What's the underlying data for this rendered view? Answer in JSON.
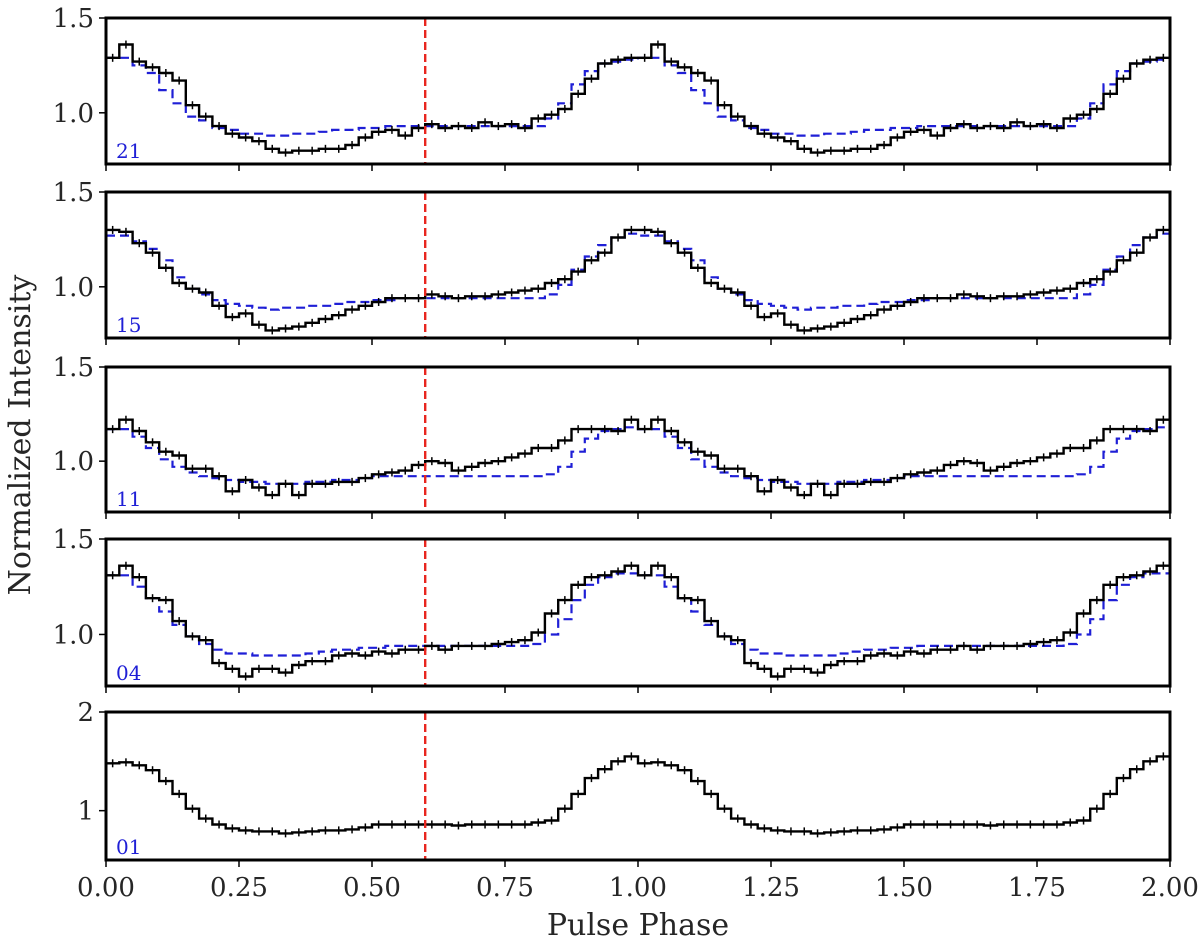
{
  "chart_data": {
    "type": "line",
    "xlabel": "Pulse Phase",
    "ylabel": "Normalized Intensity",
    "xlim": [
      0,
      2
    ],
    "x_ticks": [
      "0.00",
      "0.25",
      "0.50",
      "0.75",
      "1.00",
      "1.25",
      "1.50",
      "1.75",
      "2.00"
    ],
    "x_tick_values": [
      0,
      0.25,
      0.5,
      0.75,
      1.0,
      1.25,
      1.5,
      1.75,
      2.0
    ],
    "vline_x": 0.6,
    "colors": {
      "data": "#000000",
      "model": "#1f1fd6",
      "vline": "#e8261f",
      "frame": "#000000"
    },
    "panels": [
      {
        "label": "21",
        "ylim": [
          0.73,
          1.5
        ],
        "yticks": [
          1.0,
          1.5
        ],
        "ytick_labels": [
          "1.0",
          "1.5"
        ],
        "x": [
          0.0125,
          0.0375,
          0.0625,
          0.0875,
          0.1125,
          0.1375,
          0.1625,
          0.1875,
          0.2125,
          0.2375,
          0.2625,
          0.2875,
          0.3125,
          0.3375,
          0.3625,
          0.3875,
          0.4125,
          0.4375,
          0.4625,
          0.4875,
          0.5125,
          0.5375,
          0.5625,
          0.5875,
          0.6125,
          0.6375,
          0.6625,
          0.6875,
          0.7125,
          0.7375,
          0.7625,
          0.7875,
          0.8125,
          0.8375,
          0.8625,
          0.8875,
          0.9125,
          0.9375,
          0.9625,
          0.9875
        ],
        "data": [
          1.29,
          1.36,
          1.27,
          1.24,
          1.21,
          1.17,
          1.04,
          0.98,
          0.93,
          0.89,
          0.87,
          0.85,
          0.81,
          0.79,
          0.8,
          0.8,
          0.81,
          0.81,
          0.83,
          0.87,
          0.9,
          0.91,
          0.88,
          0.92,
          0.94,
          0.92,
          0.93,
          0.92,
          0.95,
          0.93,
          0.94,
          0.92,
          0.97,
          0.99,
          1.02,
          1.1,
          1.18,
          1.26,
          1.28,
          1.29
        ],
        "model": [
          1.29,
          1.29,
          1.25,
          1.21,
          1.12,
          1.05,
          0.98,
          0.96,
          0.92,
          0.91,
          0.89,
          0.89,
          0.88,
          0.88,
          0.89,
          0.89,
          0.9,
          0.91,
          0.91,
          0.92,
          0.92,
          0.93,
          0.93,
          0.93,
          0.93,
          0.93,
          0.93,
          0.93,
          0.93,
          0.93,
          0.93,
          0.93,
          0.93,
          0.97,
          1.05,
          1.15,
          1.22,
          1.26,
          1.27,
          1.28
        ]
      },
      {
        "label": "15",
        "ylim": [
          0.73,
          1.5
        ],
        "yticks": [
          1.0,
          1.5
        ],
        "ytick_labels": [
          "1.0",
          "1.5"
        ],
        "x": [
          0.0125,
          0.0375,
          0.0625,
          0.0875,
          0.1125,
          0.1375,
          0.1625,
          0.1875,
          0.2125,
          0.2375,
          0.2625,
          0.2875,
          0.3125,
          0.3375,
          0.3625,
          0.3875,
          0.4125,
          0.4375,
          0.4625,
          0.4875,
          0.5125,
          0.5375,
          0.5625,
          0.5875,
          0.6125,
          0.6375,
          0.6625,
          0.6875,
          0.7125,
          0.7375,
          0.7625,
          0.7875,
          0.8125,
          0.8375,
          0.8625,
          0.8875,
          0.9125,
          0.9375,
          0.9625,
          0.9875
        ],
        "data": [
          1.3,
          1.29,
          1.23,
          1.18,
          1.1,
          1.02,
          0.99,
          0.97,
          0.9,
          0.84,
          0.86,
          0.8,
          0.77,
          0.78,
          0.79,
          0.81,
          0.83,
          0.85,
          0.88,
          0.9,
          0.92,
          0.94,
          0.94,
          0.94,
          0.96,
          0.95,
          0.94,
          0.95,
          0.95,
          0.96,
          0.97,
          0.98,
          0.99,
          1.02,
          1.04,
          1.08,
          1.14,
          1.18,
          1.26,
          1.3
        ],
        "model": [
          1.27,
          1.27,
          1.24,
          1.2,
          1.14,
          1.05,
          0.99,
          0.96,
          0.93,
          0.91,
          0.9,
          0.89,
          0.88,
          0.89,
          0.89,
          0.9,
          0.9,
          0.91,
          0.92,
          0.92,
          0.93,
          0.93,
          0.94,
          0.94,
          0.94,
          0.94,
          0.94,
          0.94,
          0.94,
          0.94,
          0.94,
          0.94,
          0.94,
          0.96,
          1.01,
          1.09,
          1.16,
          1.22,
          1.26,
          1.28
        ]
      },
      {
        "label": "11",
        "ylim": [
          0.73,
          1.5
        ],
        "yticks": [
          1.0,
          1.5
        ],
        "ytick_labels": [
          "1.0",
          "1.5"
        ],
        "x": [
          0.0125,
          0.0375,
          0.0625,
          0.0875,
          0.1125,
          0.1375,
          0.1625,
          0.1875,
          0.2125,
          0.2375,
          0.2625,
          0.2875,
          0.3125,
          0.3375,
          0.3625,
          0.3875,
          0.4125,
          0.4375,
          0.4625,
          0.4875,
          0.5125,
          0.5375,
          0.5625,
          0.5875,
          0.6125,
          0.6375,
          0.6625,
          0.6875,
          0.7125,
          0.7375,
          0.7625,
          0.7875,
          0.8125,
          0.8375,
          0.8625,
          0.8875,
          0.9125,
          0.9375,
          0.9625,
          0.9875
        ],
        "data": [
          1.17,
          1.22,
          1.16,
          1.1,
          1.05,
          1.03,
          0.96,
          0.96,
          0.92,
          0.84,
          0.9,
          0.86,
          0.82,
          0.88,
          0.82,
          0.88,
          0.88,
          0.89,
          0.89,
          0.91,
          0.93,
          0.94,
          0.95,
          0.98,
          1.0,
          0.99,
          0.95,
          0.97,
          0.99,
          1.0,
          1.02,
          1.04,
          1.07,
          1.07,
          1.11,
          1.17,
          1.17,
          1.17,
          1.16,
          1.22
        ],
        "model": [
          1.17,
          1.17,
          1.13,
          1.07,
          1.01,
          0.97,
          0.94,
          0.92,
          0.91,
          0.9,
          0.89,
          0.89,
          0.88,
          0.88,
          0.88,
          0.89,
          0.89,
          0.9,
          0.9,
          0.91,
          0.92,
          0.92,
          0.92,
          0.92,
          0.92,
          0.92,
          0.92,
          0.92,
          0.92,
          0.92,
          0.92,
          0.92,
          0.92,
          0.93,
          0.97,
          1.05,
          1.12,
          1.16,
          1.17,
          1.18
        ]
      },
      {
        "label": "04",
        "ylim": [
          0.73,
          1.5
        ],
        "yticks": [
          1.0,
          1.5
        ],
        "ytick_labels": [
          "1.0",
          "1.5"
        ],
        "x": [
          0.0125,
          0.0375,
          0.0625,
          0.0875,
          0.1125,
          0.1375,
          0.1625,
          0.1875,
          0.2125,
          0.2375,
          0.2625,
          0.2875,
          0.3125,
          0.3375,
          0.3625,
          0.3875,
          0.4125,
          0.4375,
          0.4625,
          0.4875,
          0.5125,
          0.5375,
          0.5625,
          0.5875,
          0.6125,
          0.6375,
          0.6625,
          0.6875,
          0.7125,
          0.7375,
          0.7625,
          0.7875,
          0.8125,
          0.8375,
          0.8625,
          0.8875,
          0.9125,
          0.9375,
          0.9625,
          0.9875
        ],
        "data": [
          1.31,
          1.36,
          1.3,
          1.19,
          1.18,
          1.07,
          0.99,
          0.97,
          0.85,
          0.82,
          0.78,
          0.82,
          0.82,
          0.8,
          0.84,
          0.86,
          0.86,
          0.89,
          0.9,
          0.89,
          0.91,
          0.9,
          0.92,
          0.92,
          0.94,
          0.92,
          0.94,
          0.94,
          0.94,
          0.95,
          0.96,
          0.97,
          1.01,
          1.11,
          1.18,
          1.26,
          1.3,
          1.31,
          1.33,
          1.36
        ],
        "model": [
          1.31,
          1.31,
          1.25,
          1.19,
          1.12,
          1.05,
          0.99,
          0.95,
          0.92,
          0.9,
          0.9,
          0.89,
          0.89,
          0.89,
          0.89,
          0.9,
          0.91,
          0.92,
          0.92,
          0.93,
          0.93,
          0.94,
          0.94,
          0.94,
          0.94,
          0.94,
          0.94,
          0.94,
          0.94,
          0.94,
          0.94,
          0.94,
          0.95,
          1.0,
          1.08,
          1.18,
          1.26,
          1.3,
          1.32,
          1.32
        ]
      },
      {
        "label": "01",
        "ylim": [
          0.5,
          2.0
        ],
        "yticks": [
          1,
          2
        ],
        "ytick_labels": [
          "1",
          "2"
        ],
        "x": [
          0.0125,
          0.0375,
          0.0625,
          0.0875,
          0.1125,
          0.1375,
          0.1625,
          0.1875,
          0.2125,
          0.2375,
          0.2625,
          0.2875,
          0.3125,
          0.3375,
          0.3625,
          0.3875,
          0.4125,
          0.4375,
          0.4625,
          0.4875,
          0.5125,
          0.5375,
          0.5625,
          0.5875,
          0.6125,
          0.6375,
          0.6625,
          0.6875,
          0.7125,
          0.7375,
          0.7625,
          0.7875,
          0.8125,
          0.8375,
          0.8625,
          0.8875,
          0.9125,
          0.9375,
          0.9625,
          0.9875
        ],
        "data": [
          1.48,
          1.49,
          1.46,
          1.41,
          1.3,
          1.17,
          1.02,
          0.92,
          0.86,
          0.82,
          0.8,
          0.79,
          0.79,
          0.77,
          0.78,
          0.79,
          0.8,
          0.8,
          0.81,
          0.83,
          0.86,
          0.86,
          0.86,
          0.86,
          0.86,
          0.86,
          0.85,
          0.86,
          0.86,
          0.86,
          0.86,
          0.86,
          0.88,
          0.9,
          1.02,
          1.17,
          1.33,
          1.42,
          1.5,
          1.55
        ],
        "model": []
      }
    ]
  }
}
